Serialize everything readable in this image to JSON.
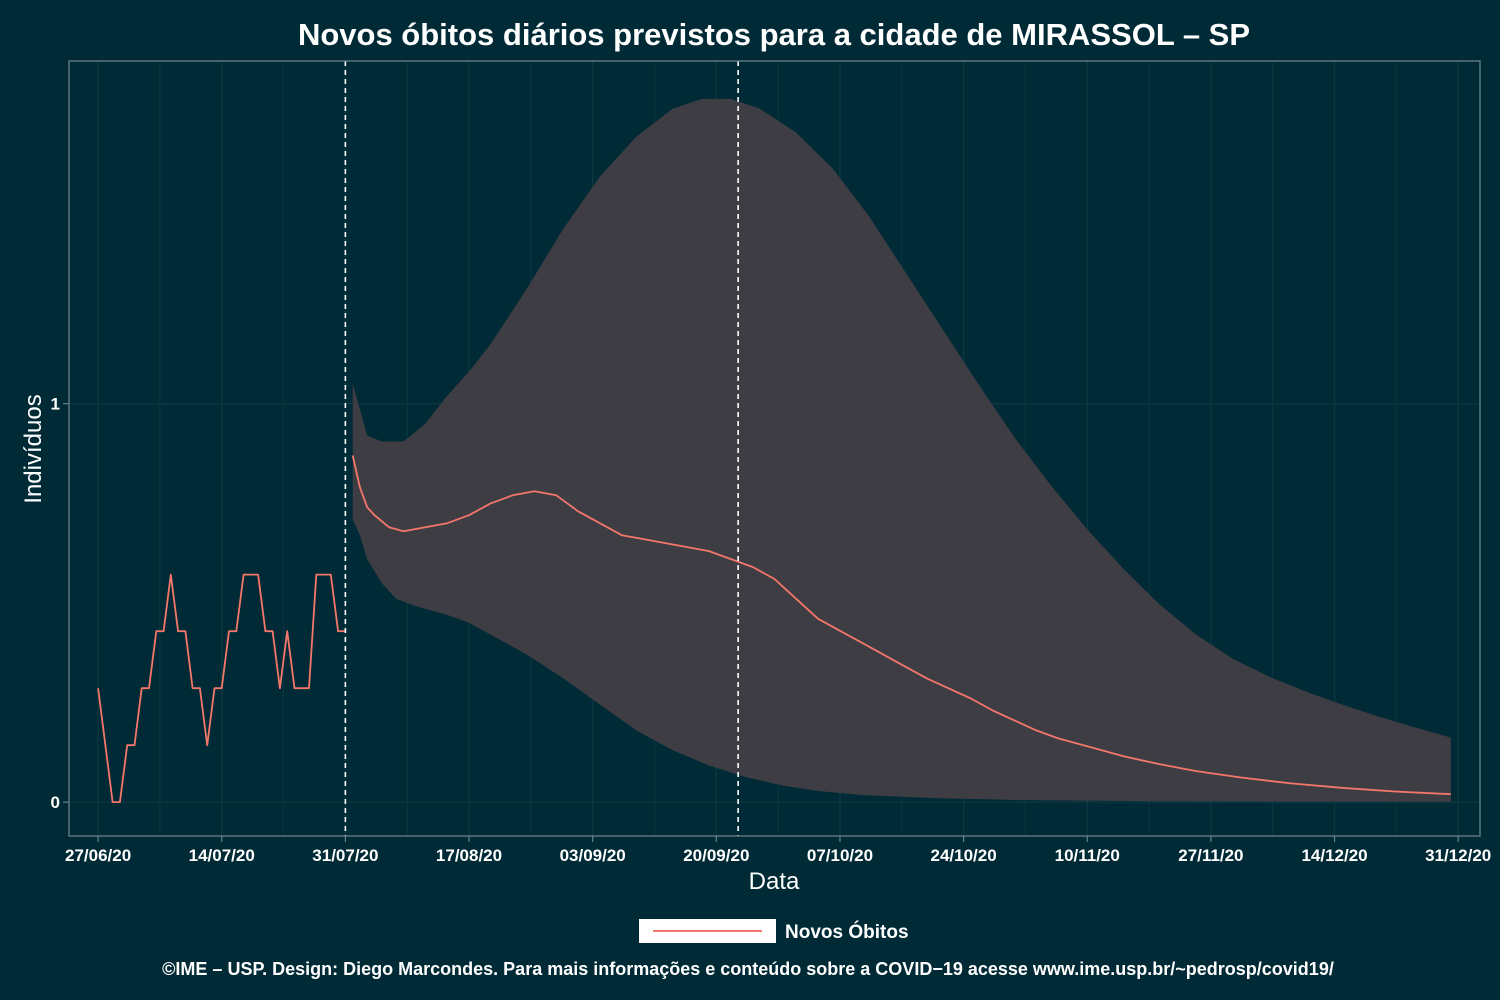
{
  "chart_data": {
    "type": "line",
    "title": "Novos óbitos diários previstos para a cidade de MIRASSOL – SP",
    "xlabel": "Data",
    "ylabel": "Indivíduos",
    "xlim": [
      "2020-06-23",
      "2021-01-03"
    ],
    "ylim": [
      -0.085,
      1.86
    ],
    "x_tick_labels": [
      "27/06/20",
      "14/07/20",
      "31/07/20",
      "17/08/20",
      "03/09/20",
      "20/09/20",
      "07/10/20",
      "24/10/20",
      "10/11/20",
      "27/11/20",
      "14/12/20",
      "31/12/20"
    ],
    "x_tick_dates": [
      "2020-06-27",
      "2020-07-14",
      "2020-07-31",
      "2020-08-17",
      "2020-09-03",
      "2020-09-20",
      "2020-10-07",
      "2020-10-24",
      "2020-11-10",
      "2020-11-27",
      "2020-12-14",
      "2020-12-31"
    ],
    "y_ticks": [
      0,
      1
    ],
    "y_tick_labels": [
      "0",
      "1"
    ],
    "grid": true,
    "legend_position": "bottom",
    "vlines": [
      "2020-07-31",
      "2020-09-23"
    ],
    "colors": {
      "background": "#002b36",
      "line": "#f4776b",
      "ribbon": "#3e3d44",
      "grid": "#0e3943",
      "border": "#6a8185",
      "vline": "#ffffff"
    },
    "series": [
      {
        "name": "Novos Óbitos",
        "points": [
          [
            "2020-06-27",
            0.286
          ],
          [
            "2020-06-28",
            0.143
          ],
          [
            "2020-06-29",
            0.0
          ],
          [
            "2020-06-30",
            0.0
          ],
          [
            "2020-07-01",
            0.143
          ],
          [
            "2020-07-02",
            0.143
          ],
          [
            "2020-07-03",
            0.286
          ],
          [
            "2020-07-04",
            0.286
          ],
          [
            "2020-07-05",
            0.429
          ],
          [
            "2020-07-06",
            0.429
          ],
          [
            "2020-07-07",
            0.571
          ],
          [
            "2020-07-08",
            0.429
          ],
          [
            "2020-07-09",
            0.429
          ],
          [
            "2020-07-10",
            0.286
          ],
          [
            "2020-07-11",
            0.286
          ],
          [
            "2020-07-12",
            0.143
          ],
          [
            "2020-07-13",
            0.286
          ],
          [
            "2020-07-14",
            0.286
          ],
          [
            "2020-07-15",
            0.429
          ],
          [
            "2020-07-16",
            0.429
          ],
          [
            "2020-07-17",
            0.571
          ],
          [
            "2020-07-18",
            0.571
          ],
          [
            "2020-07-19",
            0.571
          ],
          [
            "2020-07-20",
            0.429
          ],
          [
            "2020-07-21",
            0.429
          ],
          [
            "2020-07-22",
            0.286
          ],
          [
            "2020-07-23",
            0.429
          ],
          [
            "2020-07-24",
            0.286
          ],
          [
            "2020-07-25",
            0.286
          ],
          [
            "2020-07-26",
            0.286
          ],
          [
            "2020-07-27",
            0.571
          ],
          [
            "2020-07-28",
            0.571
          ],
          [
            "2020-07-29",
            0.571
          ],
          [
            "2020-07-30",
            0.429
          ],
          [
            "2020-07-31",
            0.429
          ]
        ]
      },
      {
        "name": "forecast_mean",
        "points": [
          [
            "2020-08-01",
            0.87
          ],
          [
            "2020-08-02",
            0.79
          ],
          [
            "2020-08-03",
            0.74
          ],
          [
            "2020-08-04",
            0.72
          ],
          [
            "2020-08-06",
            0.69
          ],
          [
            "2020-08-08",
            0.68
          ],
          [
            "2020-08-11",
            0.69
          ],
          [
            "2020-08-14",
            0.7
          ],
          [
            "2020-08-17",
            0.72
          ],
          [
            "2020-08-20",
            0.75
          ],
          [
            "2020-08-23",
            0.77
          ],
          [
            "2020-08-26",
            0.78
          ],
          [
            "2020-08-29",
            0.77
          ],
          [
            "2020-09-01",
            0.73
          ],
          [
            "2020-09-04",
            0.7
          ],
          [
            "2020-09-07",
            0.67
          ],
          [
            "2020-09-10",
            0.66
          ],
          [
            "2020-09-13",
            0.65
          ],
          [
            "2020-09-16",
            0.64
          ],
          [
            "2020-09-19",
            0.63
          ],
          [
            "2020-09-22",
            0.61
          ],
          [
            "2020-09-25",
            0.59
          ],
          [
            "2020-09-28",
            0.56
          ],
          [
            "2020-10-01",
            0.51
          ],
          [
            "2020-10-04",
            0.46
          ],
          [
            "2020-10-07",
            0.43
          ],
          [
            "2020-10-10",
            0.4
          ],
          [
            "2020-10-13",
            0.37
          ],
          [
            "2020-10-16",
            0.34
          ],
          [
            "2020-10-19",
            0.31
          ],
          [
            "2020-10-22",
            0.285
          ],
          [
            "2020-10-25",
            0.26
          ],
          [
            "2020-10-28",
            0.23
          ],
          [
            "2020-10-31",
            0.205
          ],
          [
            "2020-11-03",
            0.18
          ],
          [
            "2020-11-06",
            0.16
          ],
          [
            "2020-11-10",
            0.14
          ],
          [
            "2020-11-15",
            0.115
          ],
          [
            "2020-11-20",
            0.095
          ],
          [
            "2020-11-25",
            0.078
          ],
          [
            "2020-12-01",
            0.062
          ],
          [
            "2020-12-08",
            0.047
          ],
          [
            "2020-12-15",
            0.036
          ],
          [
            "2020-12-22",
            0.027
          ],
          [
            "2020-12-30",
            0.02
          ]
        ]
      }
    ],
    "ribbon": {
      "upper": [
        [
          "2020-08-01",
          1.05
        ],
        [
          "2020-08-03",
          0.92
        ],
        [
          "2020-08-05",
          0.905
        ],
        [
          "2020-08-08",
          0.905
        ],
        [
          "2020-08-11",
          0.95
        ],
        [
          "2020-08-14",
          1.02
        ],
        [
          "2020-08-17",
          1.08
        ],
        [
          "2020-08-20",
          1.15
        ],
        [
          "2020-08-25",
          1.29
        ],
        [
          "2020-08-30",
          1.44
        ],
        [
          "2020-09-04",
          1.57
        ],
        [
          "2020-09-09",
          1.67
        ],
        [
          "2020-09-14",
          1.74
        ],
        [
          "2020-09-18",
          1.765
        ],
        [
          "2020-09-22",
          1.765
        ],
        [
          "2020-09-26",
          1.74
        ],
        [
          "2020-10-01",
          1.68
        ],
        [
          "2020-10-06",
          1.59
        ],
        [
          "2020-10-11",
          1.47
        ],
        [
          "2020-10-16",
          1.33
        ],
        [
          "2020-10-21",
          1.19
        ],
        [
          "2020-10-26",
          1.05
        ],
        [
          "2020-10-31",
          0.915
        ],
        [
          "2020-11-05",
          0.795
        ],
        [
          "2020-11-10",
          0.685
        ],
        [
          "2020-11-15",
          0.585
        ],
        [
          "2020-11-20",
          0.495
        ],
        [
          "2020-11-25",
          0.42
        ],
        [
          "2020-11-30",
          0.36
        ],
        [
          "2020-12-05",
          0.315
        ],
        [
          "2020-12-10",
          0.278
        ],
        [
          "2020-12-15",
          0.245
        ],
        [
          "2020-12-20",
          0.215
        ],
        [
          "2020-12-25",
          0.188
        ],
        [
          "2020-12-30",
          0.162
        ]
      ],
      "lower": [
        [
          "2020-08-01",
          0.71
        ],
        [
          "2020-08-02",
          0.67
        ],
        [
          "2020-08-03",
          0.61
        ],
        [
          "2020-08-05",
          0.55
        ],
        [
          "2020-08-07",
          0.51
        ],
        [
          "2020-08-10",
          0.49
        ],
        [
          "2020-08-14",
          0.47
        ],
        [
          "2020-08-17",
          0.45
        ],
        [
          "2020-08-20",
          0.42
        ],
        [
          "2020-08-25",
          0.37
        ],
        [
          "2020-08-30",
          0.31
        ],
        [
          "2020-09-04",
          0.245
        ],
        [
          "2020-09-09",
          0.18
        ],
        [
          "2020-09-14",
          0.13
        ],
        [
          "2020-09-19",
          0.092
        ],
        [
          "2020-09-24",
          0.063
        ],
        [
          "2020-09-29",
          0.042
        ],
        [
          "2020-10-04",
          0.028
        ],
        [
          "2020-10-10",
          0.018
        ],
        [
          "2020-10-20",
          0.01
        ],
        [
          "2020-11-01",
          0.005
        ],
        [
          "2020-11-20",
          0.002
        ],
        [
          "2020-12-30",
          0.001
        ]
      ]
    }
  },
  "legend": {
    "label": "Novos Óbitos"
  },
  "footer": {
    "text": "©IME – USP. Design: Diego Marcondes. Para mais informações e conteúdo sobre a COVID−19 acesse www.ime.usp.br/~pedrosp/covid19/"
  }
}
